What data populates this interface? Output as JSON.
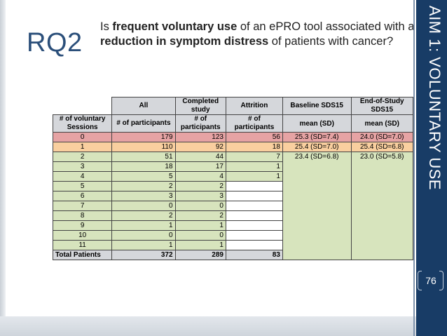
{
  "slide": {
    "rq_label": "RQ2",
    "question": {
      "p1": "Is ",
      "b1": "frequent voluntary use",
      "p2": " of an ePRO tool associated with a ",
      "b2": "reduction in symptom distress",
      "p3": " of patients with cancer?"
    },
    "side_title": "AIM 1: VOLUNTARY USE",
    "page_number": "76"
  },
  "table": {
    "headers_top": [
      "All",
      "Completed study",
      "Attrition",
      "Baseline SDS15",
      "End-of-Study SDS15"
    ],
    "headers_sub": [
      "# of voluntary Sessions",
      "# of participants",
      "# of participants",
      "# of participants",
      "mean (SD)",
      "mean (SD)"
    ],
    "rows": [
      {
        "sessions": "0",
        "all": "179",
        "completed": "123",
        "attrition": "56",
        "baseline": "25.3 (SD=7.4)",
        "end": "24.0 (SD=7.0)"
      },
      {
        "sessions": "1",
        "all": "110",
        "completed": "92",
        "attrition": "18",
        "baseline": "25.4 (SD=7.0)",
        "end": "25.4 (SD=6.8)"
      },
      {
        "sessions": "2",
        "all": "51",
        "completed": "44",
        "attrition": "7",
        "baseline": "23.4 (SD=6.8)",
        "end": "23.0 (SD=5.8)"
      },
      {
        "sessions": "3",
        "all": "18",
        "completed": "17",
        "attrition": "1",
        "baseline": "",
        "end": ""
      },
      {
        "sessions": "4",
        "all": "5",
        "completed": "4",
        "attrition": "1",
        "baseline": "",
        "end": ""
      },
      {
        "sessions": "5",
        "all": "2",
        "completed": "2",
        "attrition": "",
        "baseline": "",
        "end": ""
      },
      {
        "sessions": "6",
        "all": "3",
        "completed": "3",
        "attrition": "",
        "baseline": "",
        "end": ""
      },
      {
        "sessions": "7",
        "all": "0",
        "completed": "0",
        "attrition": "",
        "baseline": "",
        "end": ""
      },
      {
        "sessions": "8",
        "all": "2",
        "completed": "2",
        "attrition": "",
        "baseline": "",
        "end": ""
      },
      {
        "sessions": "9",
        "all": "1",
        "completed": "1",
        "attrition": "",
        "baseline": "",
        "end": ""
      },
      {
        "sessions": "10",
        "all": "0",
        "completed": "0",
        "attrition": "",
        "baseline": "",
        "end": ""
      },
      {
        "sessions": "11",
        "all": "1",
        "completed": "1",
        "attrition": "",
        "baseline": "",
        "end": ""
      }
    ],
    "totals": {
      "label": "Total Patients",
      "all": "372",
      "completed": "289",
      "attrition": "83"
    }
  },
  "colors": {
    "sidebar": "#183c66",
    "rq_text": "#2b4f7a",
    "row0": "#e6a3a4",
    "row1": "#f9cf9f",
    "green": "#d7e4bd",
    "header_gray": "#d5d7db"
  }
}
